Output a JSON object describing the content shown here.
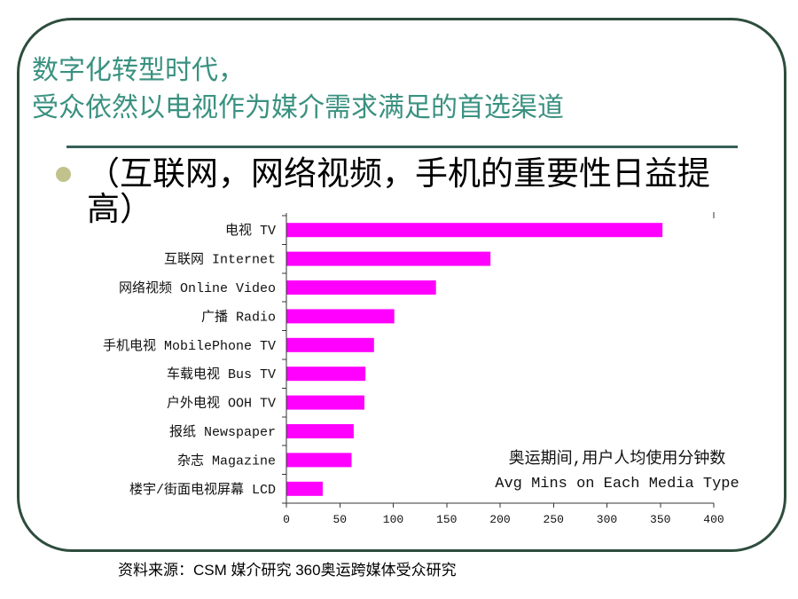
{
  "slide": {
    "title_lines": [
      "数字化转型时代，",
      "受众依然以电视作为媒介需求满足的首选渠道"
    ],
    "bullet_icon": "bullet-dot",
    "bullet_text": "（互联网，网络视频，手机的重要性日益提高）",
    "source": "资料来源：CSM 媒介研究 360奥运跨媒体受众研究"
  },
  "colors": {
    "border": "#2e4d3d",
    "title": "#3a9180",
    "rule": "#355f57",
    "bullet_dot": "#c2c28d",
    "bar": "#ff00ff",
    "axis": "#333333"
  },
  "chart_data": {
    "type": "bar",
    "orientation": "horizontal",
    "title": "奥运期间,用户人均使用分钟数",
    "subtitle": "Avg Mins on Each Media Type",
    "title_placement": "bottom-right",
    "categories": [
      "电视 TV",
      "互联网 Internet",
      "网络视频 Online Video",
      "广播 Radio",
      "手机电视 MobilePhone TV",
      "车载电视 Bus TV",
      "户外电视 OOH TV",
      "报纸 Newspaper",
      "杂志 Magazine",
      "楼宇/街面电视屏幕 LCD"
    ],
    "values": [
      352,
      191,
      140,
      101,
      82,
      74,
      73,
      63,
      61,
      34
    ],
    "xlim": [
      0,
      400
    ],
    "xticks": [
      0,
      50,
      100,
      150,
      200,
      250,
      300,
      350,
      400
    ],
    "grid": false,
    "legend": "none"
  }
}
